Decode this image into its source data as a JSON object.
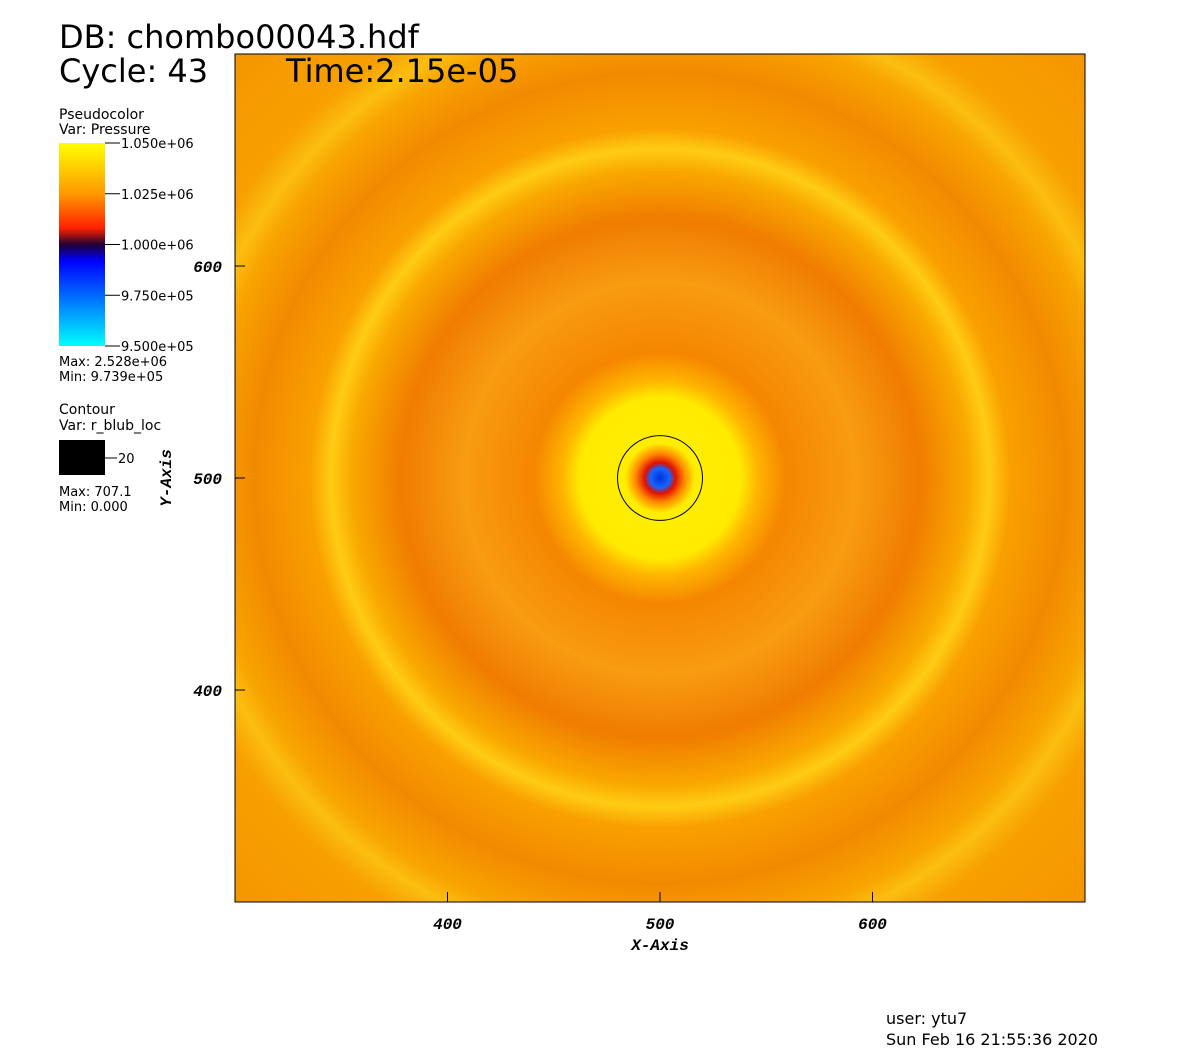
{
  "chart_data": {
    "type": "pseudocolor",
    "db_label": "DB: chombo00043.hdf",
    "cycle_label": "Cycle: 43",
    "time_label": "Time:2.15e-05",
    "x_label": "X-Axis",
    "y_label": "Y-Axis",
    "xlim": [
      300,
      700
    ],
    "ylim": [
      300,
      700
    ],
    "xticks": [
      400,
      500,
      600
    ],
    "yticks": [
      400,
      500,
      600
    ],
    "pseudocolor_legend": {
      "title": "Pseudocolor",
      "var": "Var: Pressure",
      "clim": [
        950000,
        1050000
      ],
      "ticks": [
        {
          "value": 1050000,
          "label": "1.050e+06"
        },
        {
          "value": 1025000,
          "label": "1.025e+06"
        },
        {
          "value": 1000000,
          "label": "1.000e+06"
        },
        {
          "value": 975000,
          "label": "9.750e+05"
        },
        {
          "value": 950000,
          "label": "9.500e+05"
        }
      ],
      "max": "Max: 2.528e+06",
      "min": "Min: 9.739e+05"
    },
    "contour_legend": {
      "title": "Contour",
      "var": "Var: r_blub_loc",
      "levels": [
        20
      ],
      "color": "#000000",
      "max": "Max: 707.1",
      "min": "Min: 0.000"
    },
    "user": "user: ytu7",
    "date": "Sun Feb 16 21:55:36 2020"
  }
}
